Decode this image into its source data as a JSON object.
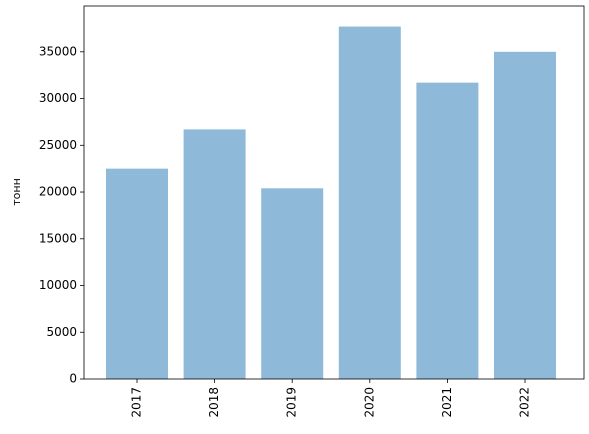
{
  "chart_data": {
    "type": "bar",
    "y_label": "тонн",
    "categories": [
      "2017",
      "2018",
      "2019",
      "2020",
      "2021",
      "2022"
    ],
    "values": [
      22500,
      26700,
      20400,
      37700,
      31700,
      35000
    ],
    "color": "#8fb9d9",
    "ylim": [
      0,
      39900
    ],
    "yticks": [
      0,
      5000,
      10000,
      15000,
      20000,
      25000,
      30000,
      35000
    ]
  }
}
